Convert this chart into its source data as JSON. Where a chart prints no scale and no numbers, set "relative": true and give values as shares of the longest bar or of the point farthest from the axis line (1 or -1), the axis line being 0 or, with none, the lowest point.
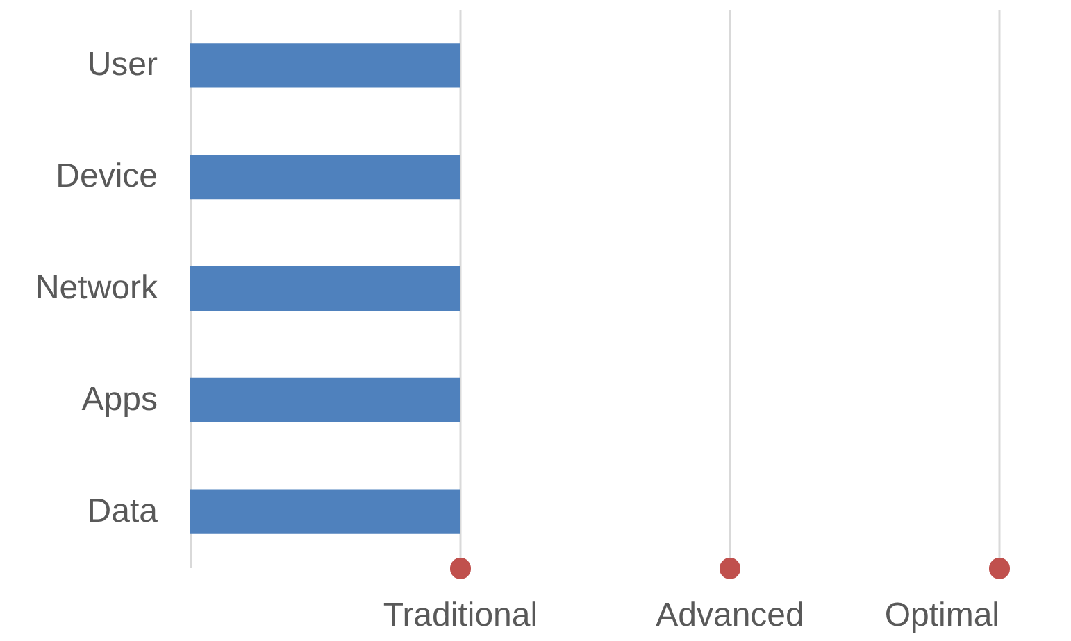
{
  "chart_data": {
    "type": "bar",
    "orientation": "horizontal",
    "relative": true,
    "categories": [
      "User",
      "Device",
      "Network",
      "Apps",
      "Data"
    ],
    "values": [
      1,
      1,
      1,
      1,
      1
    ],
    "color": "#4f81bd",
    "annotations": [
      "Traditional",
      "Advanced",
      "Optimal"
    ]
  }
}
